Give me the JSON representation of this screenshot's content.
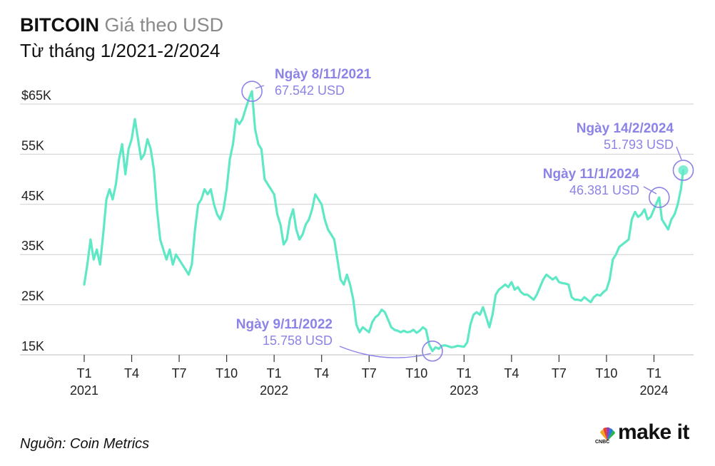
{
  "header": {
    "title_bold": "BITCOIN",
    "title_light": "Giá theo USD",
    "subtitle": "Từ tháng 1/2021-2/2024"
  },
  "footer": {
    "source": "Nguồn: Coin Metrics",
    "brand": "make it",
    "brand_logo_label": "CNBC"
  },
  "chart_data": {
    "type": "line",
    "title": "BITCOIN Giá theo USD",
    "subtitle": "Từ tháng 1/2021-2/2024",
    "xlabel": "",
    "ylabel": "",
    "ylim": [
      15000,
      65000
    ],
    "grid": true,
    "line_color": "#5fe8c6",
    "annotation_color": "#8b83e6",
    "y_ticks": [
      {
        "value": 65000,
        "label": "$65K"
      },
      {
        "value": 55000,
        "label": "55K"
      },
      {
        "value": 45000,
        "label": "45K"
      },
      {
        "value": 35000,
        "label": "35K"
      },
      {
        "value": 25000,
        "label": "25K"
      },
      {
        "value": 15000,
        "label": "15K"
      }
    ],
    "x_ticks": [
      {
        "month": 0,
        "label": "T1",
        "year": "2021"
      },
      {
        "month": 3,
        "label": "T4",
        "year": ""
      },
      {
        "month": 6,
        "label": "T7",
        "year": ""
      },
      {
        "month": 9,
        "label": "T10",
        "year": ""
      },
      {
        "month": 12,
        "label": "T1",
        "year": "2022"
      },
      {
        "month": 15,
        "label": "T4",
        "year": ""
      },
      {
        "month": 18,
        "label": "T7",
        "year": ""
      },
      {
        "month": 21,
        "label": "T10",
        "year": ""
      },
      {
        "month": 24,
        "label": "T1",
        "year": "2023"
      },
      {
        "month": 27,
        "label": "T4",
        "year": ""
      },
      {
        "month": 30,
        "label": "T7",
        "year": ""
      },
      {
        "month": 33,
        "label": "T10",
        "year": ""
      },
      {
        "month": 36,
        "label": "T1",
        "year": "2024"
      }
    ],
    "series": [
      {
        "x_unit": "months since 2021-01",
        "points": [
          [
            0.0,
            29000
          ],
          [
            0.2,
            33000
          ],
          [
            0.4,
            38000
          ],
          [
            0.6,
            34000
          ],
          [
            0.8,
            36000
          ],
          [
            1.0,
            33000
          ],
          [
            1.2,
            39000
          ],
          [
            1.4,
            46000
          ],
          [
            1.6,
            48000
          ],
          [
            1.8,
            46000
          ],
          [
            2.0,
            49000
          ],
          [
            2.2,
            54000
          ],
          [
            2.4,
            57000
          ],
          [
            2.6,
            51000
          ],
          [
            2.8,
            56000
          ],
          [
            3.0,
            58000
          ],
          [
            3.2,
            62000
          ],
          [
            3.4,
            58000
          ],
          [
            3.6,
            54000
          ],
          [
            3.8,
            55000
          ],
          [
            4.0,
            58000
          ],
          [
            4.2,
            56000
          ],
          [
            4.4,
            52000
          ],
          [
            4.6,
            44000
          ],
          [
            4.8,
            38000
          ],
          [
            5.0,
            36000
          ],
          [
            5.2,
            34000
          ],
          [
            5.4,
            36000
          ],
          [
            5.6,
            33000
          ],
          [
            5.8,
            35000
          ],
          [
            6.0,
            34000
          ],
          [
            6.2,
            33000
          ],
          [
            6.4,
            32000
          ],
          [
            6.6,
            31000
          ],
          [
            6.8,
            33000
          ],
          [
            7.0,
            40000
          ],
          [
            7.2,
            45000
          ],
          [
            7.4,
            46000
          ],
          [
            7.6,
            48000
          ],
          [
            7.8,
            47000
          ],
          [
            8.0,
            48000
          ],
          [
            8.2,
            45000
          ],
          [
            8.4,
            43000
          ],
          [
            8.6,
            42000
          ],
          [
            8.8,
            44000
          ],
          [
            9.0,
            48000
          ],
          [
            9.2,
            54000
          ],
          [
            9.4,
            57000
          ],
          [
            9.6,
            62000
          ],
          [
            9.8,
            61000
          ],
          [
            10.0,
            62000
          ],
          [
            10.2,
            64000
          ],
          [
            10.4,
            66000
          ],
          [
            10.6,
            67542
          ],
          [
            10.8,
            60000
          ],
          [
            11.0,
            57000
          ],
          [
            11.2,
            56000
          ],
          [
            11.4,
            50000
          ],
          [
            11.6,
            49000
          ],
          [
            11.8,
            48000
          ],
          [
            12.0,
            47000
          ],
          [
            12.2,
            43000
          ],
          [
            12.4,
            41000
          ],
          [
            12.6,
            37000
          ],
          [
            12.8,
            38000
          ],
          [
            13.0,
            42000
          ],
          [
            13.2,
            44000
          ],
          [
            13.4,
            40000
          ],
          [
            13.6,
            38000
          ],
          [
            13.8,
            39000
          ],
          [
            14.0,
            41000
          ],
          [
            14.2,
            42000
          ],
          [
            14.4,
            44000
          ],
          [
            14.6,
            47000
          ],
          [
            14.8,
            46000
          ],
          [
            15.0,
            45000
          ],
          [
            15.2,
            42000
          ],
          [
            15.4,
            40000
          ],
          [
            15.6,
            39000
          ],
          [
            15.8,
            38000
          ],
          [
            16.0,
            34000
          ],
          [
            16.2,
            30000
          ],
          [
            16.4,
            29000
          ],
          [
            16.6,
            31000
          ],
          [
            16.8,
            29000
          ],
          [
            17.0,
            26000
          ],
          [
            17.2,
            21000
          ],
          [
            17.4,
            19500
          ],
          [
            17.6,
            20500
          ],
          [
            17.8,
            20000
          ],
          [
            18.0,
            19500
          ],
          [
            18.2,
            21500
          ],
          [
            18.4,
            22500
          ],
          [
            18.6,
            23000
          ],
          [
            18.8,
            24000
          ],
          [
            19.0,
            23500
          ],
          [
            19.2,
            22000
          ],
          [
            19.4,
            20500
          ],
          [
            19.6,
            20000
          ],
          [
            19.8,
            19800
          ],
          [
            20.0,
            19500
          ],
          [
            20.2,
            19800
          ],
          [
            20.4,
            19500
          ],
          [
            20.6,
            19600
          ],
          [
            20.8,
            20000
          ],
          [
            21.0,
            19400
          ],
          [
            21.2,
            19800
          ],
          [
            21.4,
            20500
          ],
          [
            21.6,
            20000
          ],
          [
            21.8,
            17000
          ],
          [
            22.0,
            15758
          ],
          [
            22.2,
            16500
          ],
          [
            22.4,
            16200
          ],
          [
            22.6,
            16800
          ],
          [
            22.8,
            16900
          ],
          [
            23.0,
            16700
          ],
          [
            23.2,
            16500
          ],
          [
            23.4,
            16600
          ],
          [
            23.6,
            16800
          ],
          [
            24.0,
            16600
          ],
          [
            24.2,
            17500
          ],
          [
            24.4,
            21000
          ],
          [
            24.6,
            23000
          ],
          [
            24.8,
            23500
          ],
          [
            25.0,
            23000
          ],
          [
            25.2,
            24500
          ],
          [
            25.4,
            22500
          ],
          [
            25.6,
            20500
          ],
          [
            25.8,
            23000
          ],
          [
            26.0,
            27000
          ],
          [
            26.2,
            28000
          ],
          [
            26.4,
            28500
          ],
          [
            26.6,
            29000
          ],
          [
            26.8,
            28500
          ],
          [
            27.0,
            29500
          ],
          [
            27.2,
            28000
          ],
          [
            27.4,
            28500
          ],
          [
            27.6,
            27500
          ],
          [
            27.8,
            27000
          ],
          [
            28.0,
            27000
          ],
          [
            28.2,
            26500
          ],
          [
            28.4,
            26000
          ],
          [
            28.6,
            27000
          ],
          [
            29.0,
            30000
          ],
          [
            29.2,
            31000
          ],
          [
            29.4,
            30500
          ],
          [
            29.6,
            30000
          ],
          [
            29.8,
            30500
          ],
          [
            30.0,
            29500
          ],
          [
            30.2,
            29300
          ],
          [
            30.4,
            29200
          ],
          [
            30.6,
            29000
          ],
          [
            30.8,
            26500
          ],
          [
            31.0,
            26000
          ],
          [
            31.2,
            26000
          ],
          [
            31.4,
            25800
          ],
          [
            31.6,
            26500
          ],
          [
            31.8,
            26000
          ],
          [
            32.0,
            25500
          ],
          [
            32.2,
            26500
          ],
          [
            32.4,
            27000
          ],
          [
            32.6,
            26800
          ],
          [
            32.8,
            27500
          ],
          [
            33.0,
            28000
          ],
          [
            33.2,
            30000
          ],
          [
            33.4,
            34000
          ],
          [
            33.6,
            35000
          ],
          [
            33.8,
            36500
          ],
          [
            34.0,
            37000
          ],
          [
            34.2,
            37500
          ],
          [
            34.4,
            38000
          ],
          [
            34.6,
            42000
          ],
          [
            34.8,
            43500
          ],
          [
            35.0,
            42500
          ],
          [
            35.2,
            43000
          ],
          [
            35.4,
            44000
          ],
          [
            35.6,
            42000
          ],
          [
            35.8,
            42500
          ],
          [
            36.0,
            44000
          ],
          [
            36.2,
            45500
          ],
          [
            36.33,
            46381
          ],
          [
            36.5,
            42000
          ],
          [
            36.7,
            41000
          ],
          [
            36.9,
            40000
          ],
          [
            37.1,
            42000
          ],
          [
            37.3,
            43000
          ],
          [
            37.5,
            45000
          ],
          [
            37.7,
            48000
          ],
          [
            37.85,
            51793
          ]
        ]
      }
    ],
    "annotations": [
      {
        "x": 10.6,
        "y": 67542,
        "date": "Ngày 8/11/2021",
        "value": "67.542 USD"
      },
      {
        "x": 22.0,
        "y": 15758,
        "date": "Ngày 9/11/2022",
        "value": "15.758 USD"
      },
      {
        "x": 36.33,
        "y": 46381,
        "date": "Ngày 11/1/2024",
        "value": "46.381 USD"
      },
      {
        "x": 37.85,
        "y": 51793,
        "date": "Ngày 14/2/2024",
        "value": "51.793 USD"
      }
    ]
  }
}
